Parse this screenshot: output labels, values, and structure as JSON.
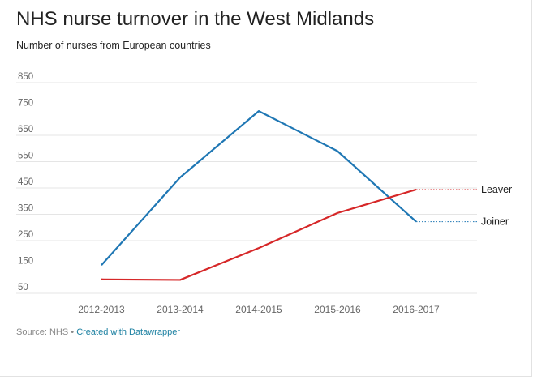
{
  "header": {
    "title": "NHS nurse turnover in the West Midlands",
    "subtitle": "Number of nurses from European countries"
  },
  "footer": {
    "source_label": "Source: NHS",
    "separator": "•",
    "credit_link": "Created with Datawrapper"
  },
  "colors": {
    "joiner": "#1f77b4",
    "leaver": "#d62728",
    "grid": "#e5e5e5",
    "axis_text": "#666666",
    "link": "#1d81a2"
  },
  "chart_data": {
    "type": "line",
    "title": "NHS nurse turnover in the West Midlands",
    "subtitle": "Number of nurses from European countries",
    "xlabel": "",
    "ylabel": "",
    "categories": [
      "2012-2013",
      "2013-2014",
      "2014-2015",
      "2015-2016",
      "2016-2017"
    ],
    "y_ticks": [
      850,
      750,
      650,
      550,
      450,
      350,
      250,
      150,
      50
    ],
    "ylim": [
      50,
      850
    ],
    "grid": true,
    "legend": "direct labels at right end of lines",
    "series": [
      {
        "name": "Joiner",
        "color": "#1f77b4",
        "values": [
          157,
          490,
          742,
          590,
          322
        ]
      },
      {
        "name": "Leaver",
        "color": "#d62728",
        "values": [
          103,
          101,
          222,
          355,
          444
        ]
      }
    ]
  }
}
